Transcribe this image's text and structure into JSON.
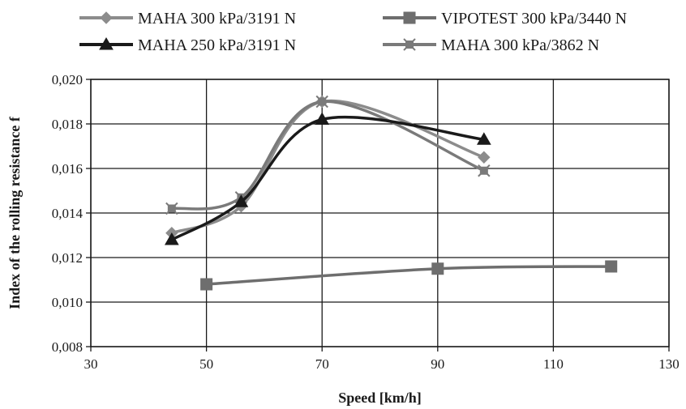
{
  "chart_data": {
    "type": "line",
    "xlabel": "Speed [km/h]",
    "ylabel": "Index of the rolling resistance f",
    "xlim": [
      30,
      130
    ],
    "ylim": [
      0.008,
      0.02
    ],
    "x_ticks": [
      30,
      50,
      70,
      90,
      110,
      130
    ],
    "x_tick_labels": [
      "30",
      "50",
      "70",
      "90",
      "110",
      "130"
    ],
    "y_ticks": [
      0.008,
      0.01,
      0.012,
      0.014,
      0.016,
      0.018,
      0.02
    ],
    "y_tick_labels": [
      "0,008",
      "0,010",
      "0,012",
      "0,014",
      "0,016",
      "0,018",
      "0,020"
    ],
    "grid": true,
    "legend_position": "top",
    "series": [
      {
        "name": "MAHA 300 kPa/3191 N",
        "marker": "diamond",
        "color": "#8c8c8c",
        "x": [
          44,
          56,
          70,
          98
        ],
        "y": [
          0.0131,
          0.0143,
          0.019,
          0.0165
        ]
      },
      {
        "name": "VIPOTEST 300 kPa/3440 N",
        "marker": "square",
        "color": "#6e6e6e",
        "x": [
          50,
          90,
          120
        ],
        "y": [
          0.0108,
          0.0115,
          0.0116
        ]
      },
      {
        "name": "MAHA 250 kPa/3191 N",
        "marker": "triangle",
        "color": "#1a1a1a",
        "x": [
          44,
          56,
          70,
          98
        ],
        "y": [
          0.0128,
          0.0145,
          0.0182,
          0.0173
        ]
      },
      {
        "name": "MAHA 300 kPa/3862 N",
        "marker": "star",
        "color": "#7a7a7a",
        "x": [
          44,
          56,
          70,
          98
        ],
        "y": [
          0.0142,
          0.0147,
          0.019,
          0.0159
        ]
      }
    ]
  }
}
